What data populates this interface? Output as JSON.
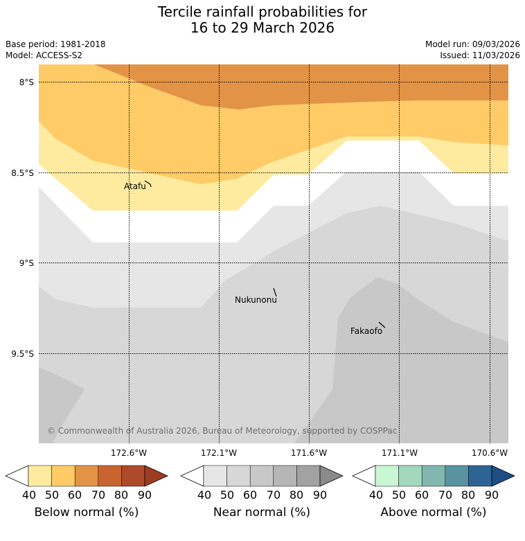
{
  "header": {
    "title_line1": "Tercile rainfall probabilities for",
    "title_line2": "16 to 29 March 2026",
    "base_period": "Base period: 1981-2018",
    "model": "Model: ACCESS-S2",
    "model_run": "Model run: 09/03/2026",
    "issued": "Issued: 11/03/2026"
  },
  "map": {
    "lat_labels": [
      "8°S",
      "8.5°S",
      "9°S",
      "9.5°S"
    ],
    "lon_labels": [
      "172.6°W",
      "172.1°W",
      "171.6°W",
      "171.1°W",
      "170.6°W"
    ],
    "places": [
      "Atafu",
      "Nukunonu",
      "Fakaofo"
    ],
    "copyright": "© Commonwealth of Australia 2026, Bureau of Meteorology, supported by COSPPac"
  },
  "legend": {
    "ticks": [
      "40",
      "50",
      "60",
      "70",
      "80",
      "90"
    ],
    "below": {
      "label": "Below normal (%)",
      "colors": [
        "#ffffff",
        "#ffeb9f",
        "#fecb66",
        "#e29346",
        "#c96431",
        "#ae4a29",
        "#9c3d22"
      ]
    },
    "near": {
      "label": "Near normal (%)",
      "colors": [
        "#ffffff",
        "#e6e6e6",
        "#d7d7d7",
        "#c8c8c8",
        "#b6b6b6",
        "#a2a2a2",
        "#8a8a8a"
      ]
    },
    "above": {
      "label": "Above normal (%)",
      "colors": [
        "#ffffff",
        "#c9f6d3",
        "#a4d8bd",
        "#81b7b0",
        "#5a93a0",
        "#2e6495",
        "#1e4d85"
      ]
    }
  }
}
